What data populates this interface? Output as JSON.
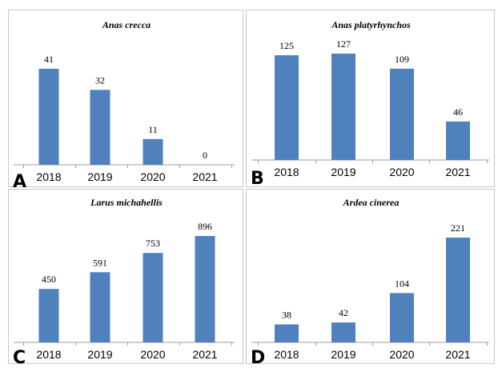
{
  "colors": {
    "bar": "#4f81bd",
    "axis": "#9c9c9c",
    "text": "#000000",
    "panel_border": "#c6c6c6"
  },
  "chart_data": [
    {
      "type": "bar",
      "panel_label": "A",
      "title": "Anas crecca",
      "categories": [
        "2018",
        "2019",
        "2020",
        "2021"
      ],
      "values": [
        41,
        32,
        11,
        0
      ],
      "ylim": [
        0,
        41
      ]
    },
    {
      "type": "bar",
      "panel_label": "B",
      "title": "Anas platyrhynchos",
      "categories": [
        "2018",
        "2019",
        "2020",
        "2021"
      ],
      "values": [
        125,
        127,
        109,
        46
      ],
      "ylim": [
        0,
        127
      ]
    },
    {
      "type": "bar",
      "panel_label": "C",
      "title": "Larus michahellis",
      "categories": [
        "2018",
        "2019",
        "2020",
        "2021"
      ],
      "values": [
        450,
        591,
        753,
        896
      ],
      "ylim": [
        0,
        896
      ]
    },
    {
      "type": "bar",
      "panel_label": "D",
      "title": "Ardea cinerea",
      "categories": [
        "2018",
        "2019",
        "2020",
        "2021"
      ],
      "values": [
        38,
        42,
        104,
        221
      ],
      "ylim": [
        0,
        221
      ]
    }
  ]
}
